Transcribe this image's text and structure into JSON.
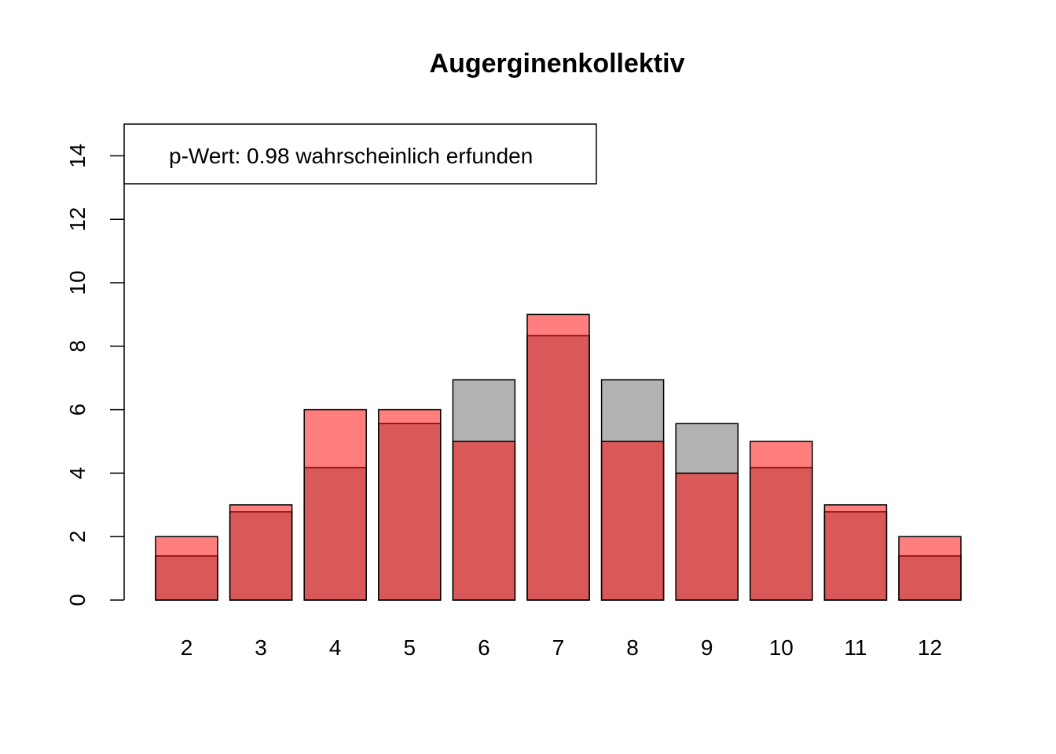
{
  "chart_data": {
    "type": "bar",
    "title": "Augerginenkollektiv",
    "xlabel": "",
    "ylabel": "",
    "categories": [
      "2",
      "3",
      "4",
      "5",
      "6",
      "7",
      "8",
      "9",
      "10",
      "11",
      "12"
    ],
    "series": [
      {
        "color": "#b2b2b2",
        "values": [
          1.39,
          2.78,
          4.17,
          5.56,
          6.94,
          8.33,
          6.94,
          5.56,
          4.17,
          2.78,
          1.39
        ]
      },
      {
        "color": "#ff0000",
        "opacity": 0.5,
        "values": [
          2,
          3,
          6,
          6,
          5,
          9,
          5,
          4,
          5,
          3,
          2
        ]
      }
    ],
    "ylim": [
      0,
      15
    ],
    "yticks": [
      0,
      2,
      4,
      6,
      8,
      10,
      12,
      14
    ],
    "grid": false,
    "legend": {
      "position": "top-left",
      "text": "p-Wert: 0.98 wahrscheinlich erfunden"
    }
  }
}
